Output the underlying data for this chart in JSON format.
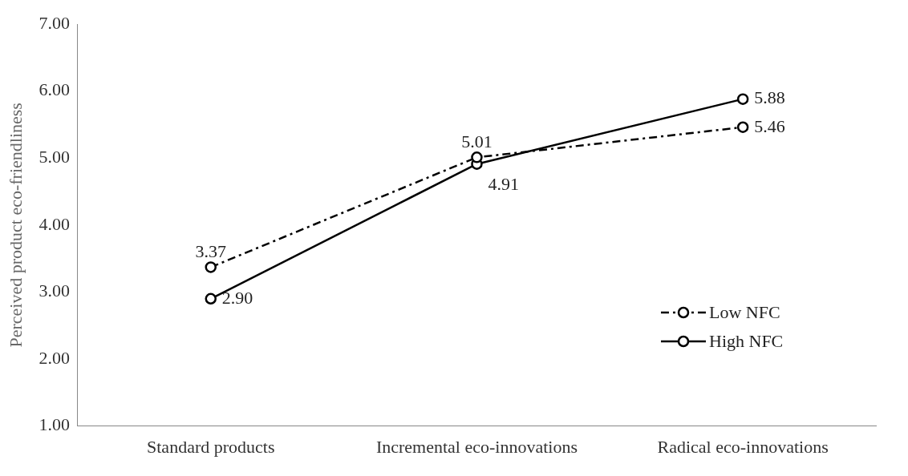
{
  "chart_data": {
    "type": "line",
    "ylabel": "Perceived product eco-friendliness",
    "categories": [
      "Standard products",
      "Incremental eco-innovations",
      "Radical eco-innovations"
    ],
    "series": [
      {
        "name": "Low NFC",
        "color": "#000000",
        "values": [
          3.37,
          5.01,
          5.46
        ],
        "value_labels": [
          "3.37",
          "5.01",
          "5.46"
        ],
        "line_style": "dashed"
      },
      {
        "name": "High NFC",
        "color": "#000000",
        "values": [
          2.9,
          4.91,
          5.88
        ],
        "value_labels": [
          "2.90",
          "4.91",
          "5.88"
        ],
        "line_style": "solid"
      }
    ],
    "ylim": [
      1,
      7
    ],
    "yticks": [
      {
        "value": 1,
        "label": "1.00"
      },
      {
        "value": 2,
        "label": "2.00"
      },
      {
        "value": 3,
        "label": "3.00"
      },
      {
        "value": 4,
        "label": "4.00"
      },
      {
        "value": 5,
        "label": "5.00"
      },
      {
        "value": 6,
        "label": "6.00"
      },
      {
        "value": 7,
        "label": "7.00"
      }
    ],
    "grid": false,
    "legend": "bottom right",
    "marker": "circle"
  }
}
